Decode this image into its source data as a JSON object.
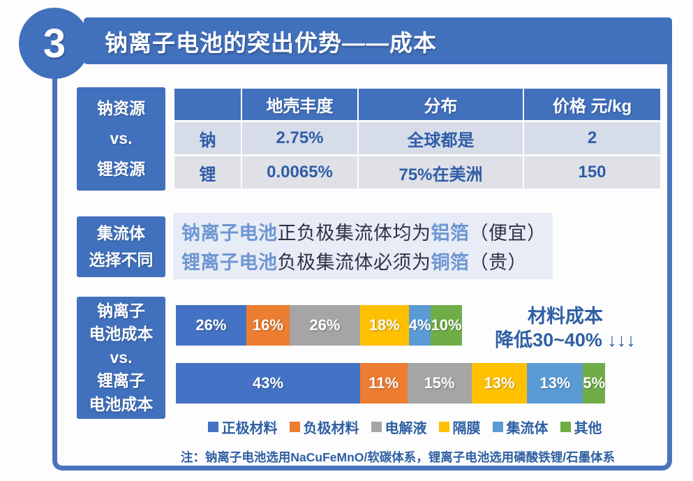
{
  "page_number": "3",
  "header": {
    "title": "钠离子电池的突出优势——成本"
  },
  "colors": {
    "main_blue": "#4170bd",
    "frame_blue": "#4a73bd",
    "value_blue": "#2f5da8",
    "accent_blue": "#2e5fa3",
    "highlight_blue": "#6e96d2",
    "row1_bg": "#d7dce9",
    "row2_bg": "#dfe1e6",
    "collector_bg": "#e7ecf6"
  },
  "section_resources": {
    "sidebar_lines": [
      "钠资源",
      "vs.",
      "锂资源"
    ],
    "table": {
      "headers": [
        "",
        "地壳丰度",
        "分布",
        "价格 元/kg"
      ],
      "rows": [
        {
          "label": "钠",
          "abundance": "2.75%",
          "distribution": "全球都是",
          "price": "2"
        },
        {
          "label": "锂",
          "abundance": "0.0065%",
          "distribution": "75%在美洲",
          "price": "150"
        }
      ]
    }
  },
  "section_collector": {
    "sidebar_lines": [
      "集流体",
      "选择不同"
    ],
    "lines": [
      {
        "parts": [
          {
            "text": "钠离子电池",
            "hl": true
          },
          {
            "text": "正负极集流体均为",
            "hl": false
          },
          {
            "text": "铝箔",
            "hl": true
          },
          {
            "text": "（便宜）",
            "hl": false
          }
        ]
      },
      {
        "parts": [
          {
            "text": "锂离子电池",
            "hl": true
          },
          {
            "text": "负极集流体必须为",
            "hl": false
          },
          {
            "text": "铜箔",
            "hl": true
          },
          {
            "text": "（贵）",
            "hl": false
          }
        ]
      }
    ]
  },
  "section_cost": {
    "sidebar_lines": [
      "钠离子",
      "电池成本",
      "vs.",
      "锂离子",
      "电池成本"
    ],
    "annotation_line1": "材料成本",
    "annotation_line2": "降低30~40% ↓↓↓",
    "note": "注：钠离子电池选用NaCuFeMnO/软碳体系，锂离子电池选用磷酸铁锂/石墨体系"
  },
  "chart_data": {
    "type": "bar",
    "subtype": "horizontal-stacked",
    "categories": [
      "钠离子电池成本",
      "锂离子电池成本"
    ],
    "series": [
      {
        "name": "正极材料",
        "color": "#4472c4",
        "values": [
          26,
          43
        ]
      },
      {
        "name": "负极材料",
        "color": "#ed7d31",
        "values": [
          16,
          11
        ]
      },
      {
        "name": "电解液",
        "color": "#a5a5a5",
        "values": [
          26,
          15
        ]
      },
      {
        "name": "隔膜",
        "color": "#ffc000",
        "values": [
          18,
          13
        ]
      },
      {
        "name": "集流体",
        "color": "#5b9bd5",
        "values": [
          4,
          13
        ]
      },
      {
        "name": "其他",
        "color": "#70ad47",
        "values": [
          10,
          5
        ]
      }
    ],
    "values_unit": "%",
    "bar_length_ratio": [
      0.632,
      1.0
    ],
    "annotation": "材料成本 降低30~40% ↓↓↓",
    "note": "注：钠离子电池选用NaCuFeMnO/软碳体系，锂离子电池选用磷酸铁锂/石墨体系",
    "legend_position": "bottom",
    "grid": false,
    "data_labels": "inside-white"
  }
}
